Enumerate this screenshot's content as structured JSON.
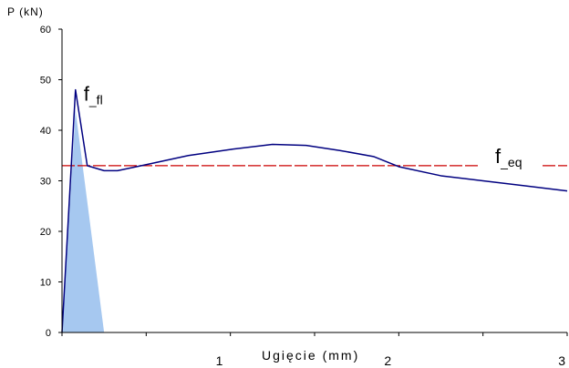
{
  "chart_data": {
    "type": "line",
    "ylabel": "P (kN)",
    "xlabel": "Ugięcie (mm)",
    "xlim": [
      0,
      3
    ],
    "ylim": [
      0,
      60
    ],
    "y_ticks": [
      "0",
      "10",
      "20",
      "30",
      "40",
      "50",
      "60"
    ],
    "x_ticks": [
      "1",
      "2",
      "3"
    ],
    "grid": false,
    "series": [
      {
        "color": "#000080",
        "points": [
          [
            0,
            0
          ],
          [
            0.08,
            48
          ],
          [
            0.15,
            33
          ],
          [
            0.25,
            32
          ],
          [
            0.33,
            32
          ],
          [
            0.5,
            33.2
          ],
          [
            0.75,
            35
          ],
          [
            1.0,
            36.2
          ],
          [
            1.25,
            37.2
          ],
          [
            1.45,
            37
          ],
          [
            1.65,
            36
          ],
          [
            1.85,
            34.8
          ],
          [
            2.0,
            32.8
          ],
          [
            2.25,
            31
          ],
          [
            2.5,
            30
          ],
          [
            2.75,
            29
          ],
          [
            3.0,
            28
          ]
        ]
      }
    ],
    "shaded_area": {
      "color": "#a6c8f0",
      "points": [
        [
          0,
          0
        ],
        [
          0.08,
          44
        ],
        [
          0.25,
          0
        ]
      ]
    },
    "reference_line": {
      "y": 33,
      "color": "#cc0000",
      "style": "dashed",
      "label": "f_eq",
      "label_main": "f",
      "label_sub": "_eq"
    },
    "peak_annotation": {
      "label": "f_fl",
      "label_main": "f",
      "label_sub": "_fl",
      "x": 0.08,
      "y": 48
    }
  }
}
